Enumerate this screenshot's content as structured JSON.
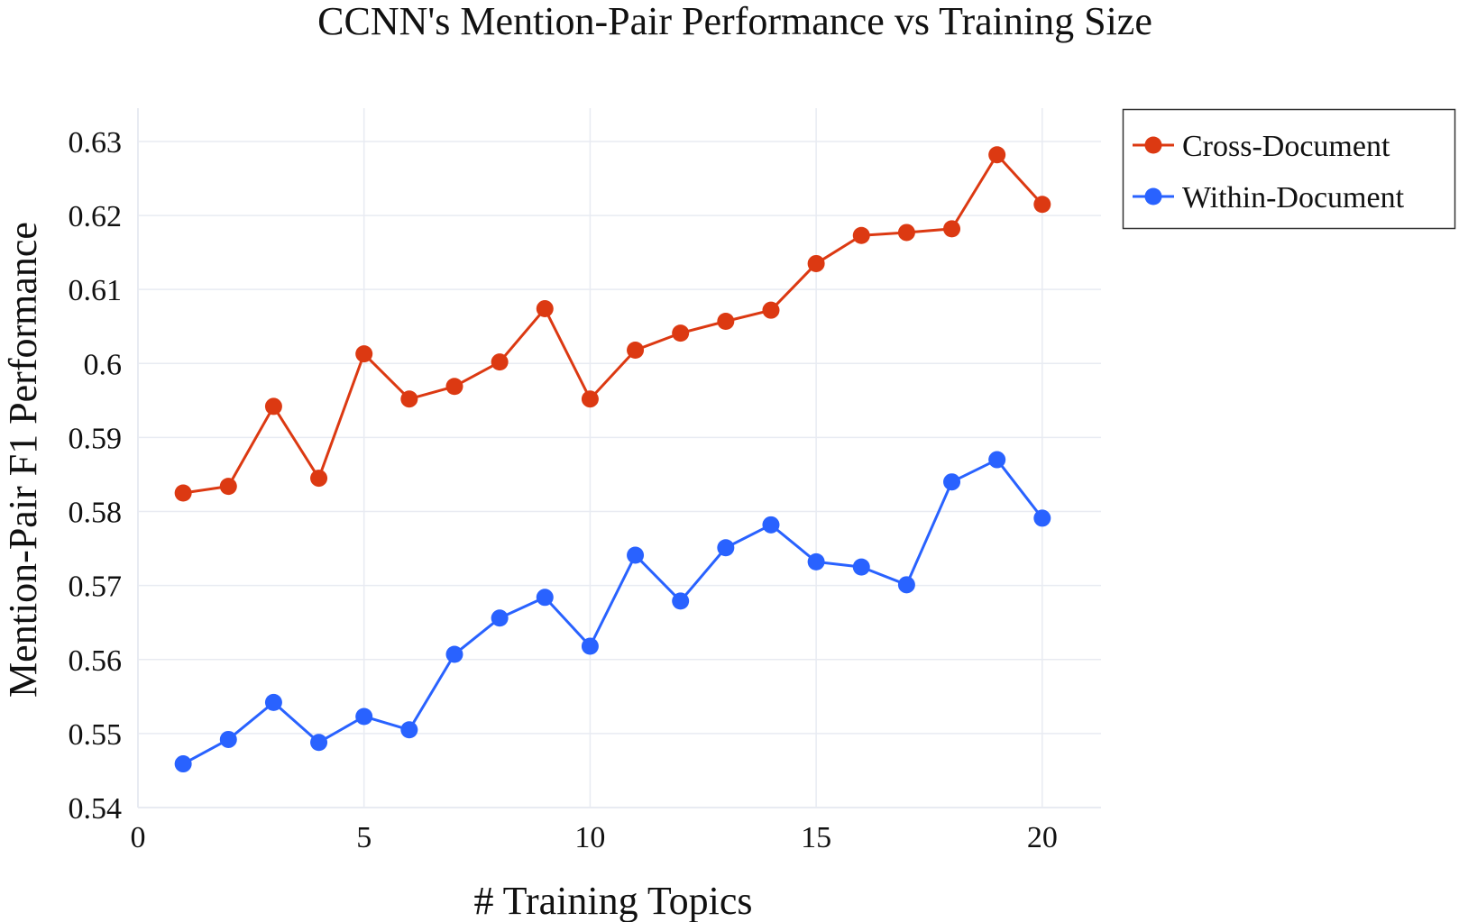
{
  "chart_data": {
    "type": "line",
    "title": "CCNN's Mention-Pair Performance vs Training Size",
    "xlabel": "# Training Topics",
    "ylabel": "Mention-Pair F1 Performance",
    "xlim": [
      0,
      21.3
    ],
    "ylim": [
      0.54,
      0.6345
    ],
    "x_ticks": [
      0,
      5,
      10,
      15,
      20
    ],
    "y_ticks": [
      0.54,
      0.55,
      0.56,
      0.57,
      0.58,
      0.59,
      0.6,
      0.61,
      0.62,
      0.63
    ],
    "x_tick_labels": [
      "0",
      "5",
      "10",
      "15",
      "20"
    ],
    "y_tick_labels": [
      "0.54",
      "0.55",
      "0.56",
      "0.57",
      "0.58",
      "0.59",
      "0.6",
      "0.61",
      "0.62",
      "0.63"
    ],
    "grid": true,
    "legend_position": "top-right, outside plot",
    "x": [
      1,
      2,
      3,
      4,
      5,
      6,
      7,
      8,
      9,
      10,
      11,
      12,
      13,
      14,
      15,
      16,
      17,
      18,
      19,
      20
    ],
    "series": [
      {
        "name": "Cross-Document",
        "color": "#dc3912",
        "values": [
          0.5825,
          0.5834,
          0.5942,
          0.5845,
          0.6013,
          0.5952,
          0.5969,
          0.6002,
          0.6074,
          0.5952,
          0.6018,
          0.6041,
          0.6057,
          0.6072,
          0.6135,
          0.6173,
          0.6177,
          0.6182,
          0.6282,
          0.6215
        ]
      },
      {
        "name": "Within-Document",
        "color": "#2962ff",
        "values": [
          0.5459,
          0.5492,
          0.5542,
          0.5488,
          0.5523,
          0.5505,
          0.5607,
          0.5656,
          0.5684,
          0.5618,
          0.5741,
          0.5679,
          0.5751,
          0.5782,
          0.5732,
          0.5725,
          0.5701,
          0.584,
          0.587,
          0.5791
        ]
      }
    ]
  }
}
